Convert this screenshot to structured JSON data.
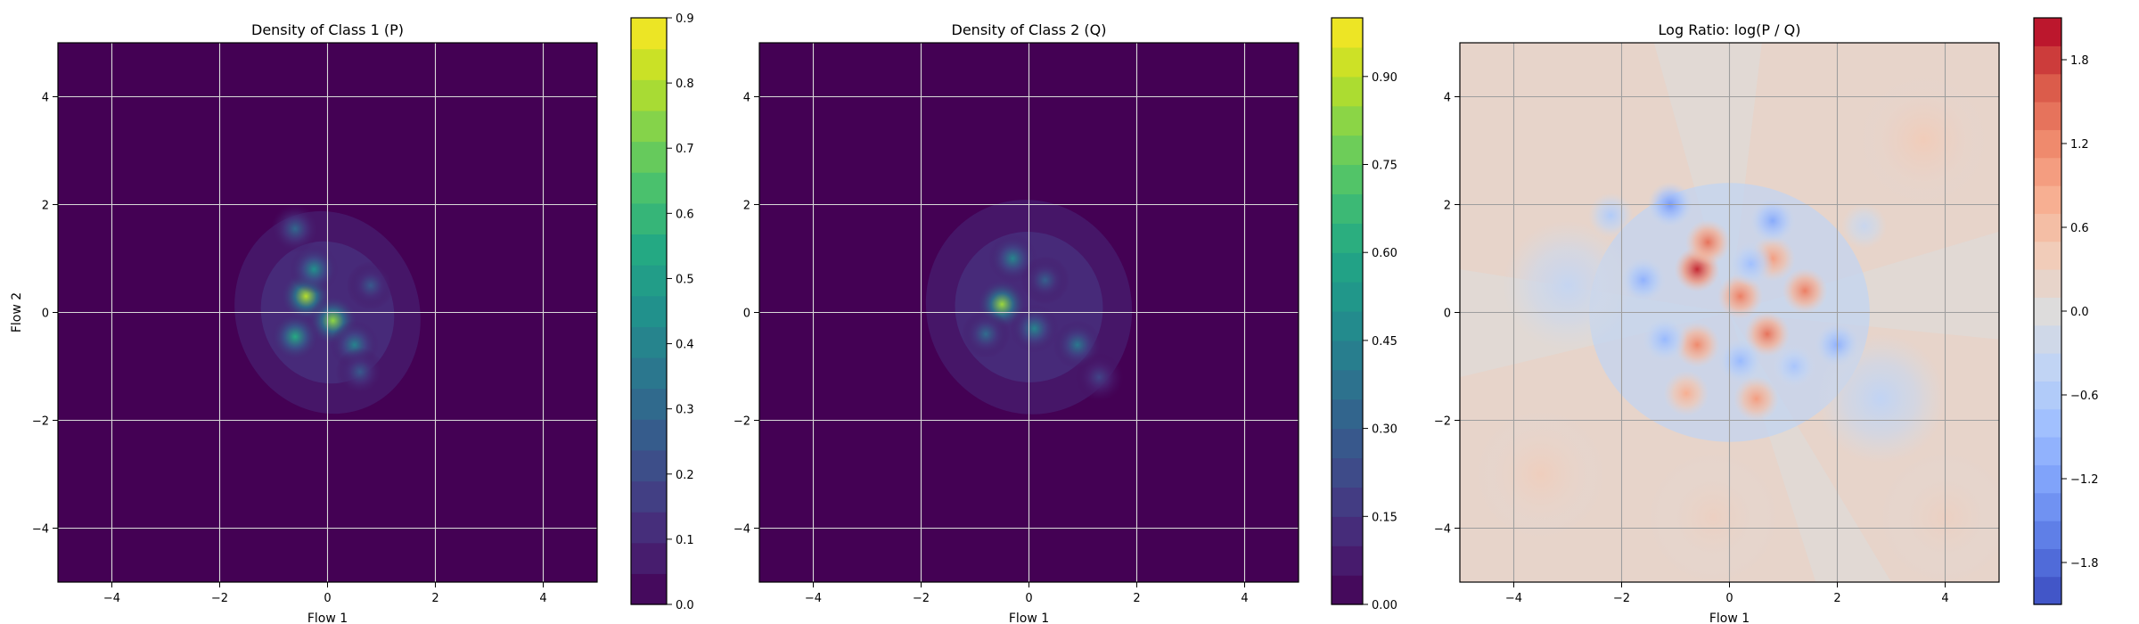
{
  "chart_data": [
    {
      "type": "heatmap",
      "title": "Density of Class 1 (P)",
      "xlabel": "Flow 1",
      "ylabel": "Flow 2",
      "xlim": [
        -5,
        5
      ],
      "ylim": [
        -5,
        5
      ],
      "xticks": [
        -4,
        -2,
        0,
        2,
        4
      ],
      "yticks": [
        -4,
        -2,
        0,
        2,
        4
      ],
      "xtick_labels": [
        "−4",
        "−2",
        "0",
        "2",
        "4"
      ],
      "ytick_labels": [
        "−4",
        "−2",
        "0",
        "2",
        "4"
      ],
      "grid": true,
      "colormap": "viridis",
      "colorbar": {
        "vmin": 0,
        "vmax": 0.9,
        "levels": 19,
        "ticks": [
          0,
          0.1,
          0.2,
          0.3,
          0.4,
          0.5,
          0.6,
          0.7,
          0.8,
          0.9
        ],
        "tick_labels": [
          "0.0",
          "0.1",
          "0.2",
          "0.3",
          "0.4",
          "0.5",
          "0.6",
          "0.7",
          "0.8",
          "0.9"
        ]
      },
      "density_blob": {
        "region_x": [
          -1.7,
          1.7
        ],
        "region_y": [
          -1.9,
          1.9
        ],
        "peaks": [
          {
            "x": -0.4,
            "y": 0.3,
            "value": 0.8
          },
          {
            "x": 0.1,
            "y": -0.15,
            "value": 0.75
          },
          {
            "x": -0.6,
            "y": -0.45,
            "value": 0.55
          },
          {
            "x": -0.25,
            "y": 0.8,
            "value": 0.45
          },
          {
            "x": 0.5,
            "y": -0.6,
            "value": 0.4
          },
          {
            "x": -0.6,
            "y": 1.55,
            "value": 0.3
          },
          {
            "x": 0.8,
            "y": 0.5,
            "value": 0.25
          },
          {
            "x": 0.6,
            "y": -1.1,
            "value": 0.25
          }
        ]
      }
    },
    {
      "type": "heatmap",
      "title": "Density of Class 2 (Q)",
      "xlabel": "Flow 1",
      "ylabel": "",
      "xlim": [
        -5,
        5
      ],
      "ylim": [
        -5,
        5
      ],
      "xticks": [
        -4,
        -2,
        0,
        2,
        4
      ],
      "yticks": [
        -4,
        -2,
        0,
        2,
        4
      ],
      "xtick_labels": [
        "−4",
        "−2",
        "0",
        "2",
        "4"
      ],
      "ytick_labels": [
        "−4",
        "−2",
        "0",
        "2",
        "4"
      ],
      "grid": true,
      "colormap": "viridis",
      "colorbar": {
        "vmin": 0,
        "vmax": 1.0,
        "levels": 20,
        "ticks": [
          0,
          0.15,
          0.3,
          0.45,
          0.6,
          0.75,
          0.9
        ],
        "tick_labels": [
          "0.00",
          "0.15",
          "0.30",
          "0.45",
          "0.60",
          "0.75",
          "0.90"
        ]
      },
      "density_blob": {
        "region_x": [
          -1.9,
          1.9
        ],
        "region_y": [
          -1.9,
          2.1
        ],
        "peaks": [
          {
            "x": -0.5,
            "y": 0.15,
            "value": 0.85
          },
          {
            "x": -0.3,
            "y": 1.0,
            "value": 0.45
          },
          {
            "x": 0.1,
            "y": -0.3,
            "value": 0.45
          },
          {
            "x": 0.9,
            "y": -0.6,
            "value": 0.4
          },
          {
            "x": -0.8,
            "y": -0.4,
            "value": 0.35
          },
          {
            "x": 0.3,
            "y": 0.6,
            "value": 0.3
          },
          {
            "x": 1.3,
            "y": -1.2,
            "value": 0.2
          }
        ]
      }
    },
    {
      "type": "heatmap",
      "title": "Log Ratio: log(P / Q)",
      "xlabel": "Flow 1",
      "ylabel": "",
      "xlim": [
        -5,
        5
      ],
      "ylim": [
        -5,
        5
      ],
      "xticks": [
        -4,
        -2,
        0,
        2,
        4
      ],
      "yticks": [
        -4,
        -2,
        0,
        2,
        4
      ],
      "xtick_labels": [
        "−4",
        "−2",
        "0",
        "2",
        "4"
      ],
      "ytick_labels": [
        "−4",
        "−2",
        "0",
        "2",
        "4"
      ],
      "grid": true,
      "colormap": "coolwarm",
      "colorbar": {
        "vmin": -2.1,
        "vmax": 2.1,
        "levels": 21,
        "ticks": [
          -1.8,
          -1.2,
          -0.6,
          0.0,
          0.6,
          1.2,
          1.8
        ],
        "tick_labels": [
          "−1.8",
          "−1.2",
          "−0.6",
          "0.0",
          "0.6",
          "1.2",
          "1.8"
        ]
      },
      "background_value": 0.2,
      "features": [
        {
          "x": -0.6,
          "y": 0.8,
          "value": 1.9
        },
        {
          "x": -0.4,
          "y": 1.3,
          "value": 1.4
        },
        {
          "x": 0.2,
          "y": 0.3,
          "value": 1.3
        },
        {
          "x": 1.4,
          "y": 0.4,
          "value": 1.3
        },
        {
          "x": 0.7,
          "y": -0.4,
          "value": 1.4
        },
        {
          "x": -0.6,
          "y": -0.6,
          "value": 1.2
        },
        {
          "x": 0.5,
          "y": -1.6,
          "value": 1.0
        },
        {
          "x": -0.8,
          "y": -1.5,
          "value": 0.8
        },
        {
          "x": 0.8,
          "y": 1.0,
          "value": 1.0
        },
        {
          "x": -1.1,
          "y": 2.0,
          "value": -1.3
        },
        {
          "x": 0.8,
          "y": 1.7,
          "value": -1.1
        },
        {
          "x": -1.6,
          "y": 0.6,
          "value": -1.0
        },
        {
          "x": 2.0,
          "y": -0.6,
          "value": -1.0
        },
        {
          "x": -1.2,
          "y": -0.5,
          "value": -0.9
        },
        {
          "x": 0.2,
          "y": -0.9,
          "value": -0.9
        },
        {
          "x": 1.2,
          "y": -1.0,
          "value": -0.7
        },
        {
          "x": 0.4,
          "y": 0.9,
          "value": -0.8
        },
        {
          "x": -2.2,
          "y": 1.8,
          "value": -0.6
        },
        {
          "x": -3.0,
          "y": 0.5,
          "value": -0.35
        },
        {
          "x": 2.5,
          "y": 1.6,
          "value": -0.3
        },
        {
          "x": 2.8,
          "y": -1.6,
          "value": -0.4
        },
        {
          "x": -3.5,
          "y": -3.0,
          "value": 0.35
        },
        {
          "x": 3.6,
          "y": 3.2,
          "value": 0.4
        },
        {
          "x": 4.0,
          "y": -3.8,
          "value": 0.3
        },
        {
          "x": -0.3,
          "y": -3.8,
          "value": 0.3
        }
      ]
    }
  ]
}
